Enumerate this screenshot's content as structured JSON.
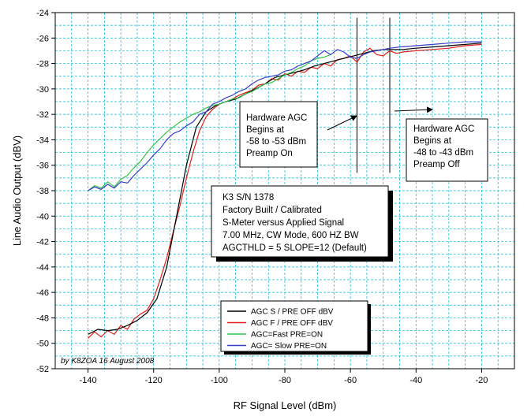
{
  "chart_data": {
    "type": "line",
    "xlabel": "RF Signal Level (dBm)",
    "ylabel": "Line Audio Output (dBV)",
    "xlim": [
      -150,
      -10
    ],
    "ylim": [
      -52,
      -24
    ],
    "xticks": [
      -140,
      -120,
      -100,
      -80,
      -60,
      -40,
      -20
    ],
    "yticks": [
      -52,
      -50,
      -48,
      -46,
      -44,
      -42,
      -40,
      -38,
      -36,
      -34,
      -32,
      -30,
      -28,
      -26,
      -24
    ],
    "grid": true,
    "legend_position": "bottom-center",
    "series": [
      {
        "name": "AGC S / PRE OFF dBV",
        "color": "#000000",
        "x": [
          -140,
          -137,
          -134,
          -131,
          -128,
          -125,
          -122,
          -119,
          -116,
          -113,
          -110,
          -107,
          -104,
          -101,
          -98,
          -95,
          -92,
          -89,
          -86,
          -83,
          -80,
          -77,
          -74,
          -71,
          -68,
          -65,
          -62,
          -59,
          -56,
          -53,
          -50,
          -47,
          -44,
          -40,
          -35,
          -30,
          -25,
          -20
        ],
        "y": [
          -49.3,
          -48.9,
          -49.0,
          -48.9,
          -48.6,
          -48.2,
          -47.6,
          -46.5,
          -44.0,
          -40.0,
          -36.0,
          -33.0,
          -31.8,
          -31.3,
          -31.0,
          -30.8,
          -30.4,
          -30.0,
          -29.6,
          -29.1,
          -28.9,
          -28.7,
          -28.5,
          -28.2,
          -28.0,
          -27.8,
          -27.6,
          -27.4,
          -27.2,
          -27.0,
          -26.9,
          -26.9,
          -26.9,
          -26.8,
          -26.7,
          -26.6,
          -26.5,
          -26.4
        ]
      },
      {
        "name": "AGC F / PRE OFF dBV",
        "color": "#e0201a",
        "x": [
          -140,
          -138,
          -136,
          -134,
          -132,
          -130,
          -128,
          -126,
          -124,
          -122,
          -120,
          -118,
          -116,
          -114,
          -112,
          -110,
          -108,
          -106,
          -104,
          -102,
          -100,
          -98,
          -96,
          -94,
          -92,
          -90,
          -88,
          -86,
          -84,
          -82,
          -80,
          -78,
          -76,
          -74,
          -72,
          -70,
          -68,
          -66,
          -64,
          -62,
          -60,
          -58,
          -56,
          -54,
          -52,
          -50,
          -48,
          -46,
          -44,
          -40,
          -35,
          -30,
          -25,
          -20
        ],
        "y": [
          -49.6,
          -49.1,
          -49.5,
          -49.0,
          -49.3,
          -48.6,
          -48.9,
          -48.1,
          -47.7,
          -47.4,
          -46.5,
          -45.0,
          -43.3,
          -41.2,
          -39.2,
          -37.0,
          -35.0,
          -33.3,
          -32.2,
          -31.6,
          -31.2,
          -31.0,
          -30.8,
          -30.5,
          -30.3,
          -30.1,
          -29.7,
          -29.6,
          -29.2,
          -29.3,
          -28.8,
          -29.0,
          -28.6,
          -28.7,
          -28.3,
          -28.4,
          -28.0,
          -28.2,
          -27.7,
          -27.6,
          -27.4,
          -27.9,
          -27.1,
          -26.8,
          -27.3,
          -27.4,
          -27.0,
          -27.2,
          -27.1,
          -27.0,
          -26.9,
          -26.8,
          -26.6,
          -26.5
        ]
      },
      {
        "name": "AGC=Fast PRE=ON",
        "color": "#34c24a",
        "x": [
          -140,
          -138,
          -136,
          -134,
          -132,
          -130,
          -128,
          -126,
          -124,
          -122,
          -120,
          -118,
          -116,
          -114,
          -112,
          -110,
          -108,
          -106,
          -104,
          -102,
          -100,
          -98,
          -96,
          -94,
          -92,
          -90,
          -88,
          -86,
          -84,
          -82,
          -80,
          -78,
          -76,
          -74,
          -72,
          -70,
          -68,
          -66
        ],
        "y": [
          -38.0,
          -37.6,
          -37.8,
          -37.3,
          -37.7,
          -37.1,
          -36.8,
          -36.2,
          -35.7,
          -35.0,
          -34.4,
          -33.9,
          -33.4,
          -33.0,
          -32.6,
          -32.3,
          -32.0,
          -31.8,
          -31.5,
          -31.3,
          -31.2,
          -31.0,
          -30.8,
          -30.7,
          -30.4,
          -30.2,
          -29.9,
          -29.6,
          -29.5,
          -29.2,
          -28.9,
          -28.7,
          -28.4,
          -28.2,
          -27.8,
          -27.6,
          -27.5,
          -27.3
        ]
      },
      {
        "name": "AGC= Slow PRE=ON",
        "color": "#3a3ec8",
        "x": [
          -140,
          -138,
          -136,
          -134,
          -132,
          -130,
          -128,
          -126,
          -124,
          -122,
          -120,
          -118,
          -116,
          -114,
          -112,
          -110,
          -108,
          -106,
          -104,
          -102,
          -100,
          -98,
          -96,
          -94,
          -92,
          -90,
          -88,
          -86,
          -84,
          -82,
          -80,
          -78,
          -76,
          -74,
          -72,
          -70,
          -68,
          -66,
          -64,
          -62,
          -60,
          -58,
          -56,
          -54,
          -52,
          -50,
          -48,
          -45,
          -40,
          -35,
          -30,
          -25,
          -20
        ],
        "y": [
          -38.0,
          -37.7,
          -37.9,
          -37.5,
          -37.8,
          -37.3,
          -37.4,
          -36.8,
          -36.3,
          -35.8,
          -35.2,
          -34.7,
          -34.0,
          -33.5,
          -33.3,
          -32.9,
          -32.6,
          -32.0,
          -31.8,
          -31.2,
          -31.0,
          -30.7,
          -30.5,
          -30.2,
          -30.0,
          -29.6,
          -29.3,
          -29.1,
          -29.0,
          -28.9,
          -28.6,
          -28.5,
          -28.2,
          -28.0,
          -27.8,
          -27.4,
          -27.0,
          -27.3,
          -26.9,
          -27.1,
          -27.5,
          -27.6,
          -27.3,
          -27.1,
          -27.0,
          -26.9,
          -26.8,
          -26.7,
          -26.6,
          -26.5,
          -26.4,
          -26.3,
          -26.3
        ]
      }
    ],
    "vertical_lines": [
      -58,
      -48
    ],
    "annotations": {
      "box1": [
        "Hardware AGC",
        "Begins at",
        "-58 to -53 dBm",
        "Preamp On"
      ],
      "box2": [
        "Hardware AGC",
        "Begins at",
        "-48 to -43 dBm",
        "Preamp Off"
      ],
      "info": [
        "K3 S/N 1378",
        "Factory Built / Calibrated",
        "S-Meter versus Applied Signal",
        "7.00 MHz, CW Mode, 600 HZ BW",
        "AGCTHLD = 5 SLOPE=12 (Default)"
      ],
      "credit": "by K8ZOA 16 August 2008"
    }
  }
}
